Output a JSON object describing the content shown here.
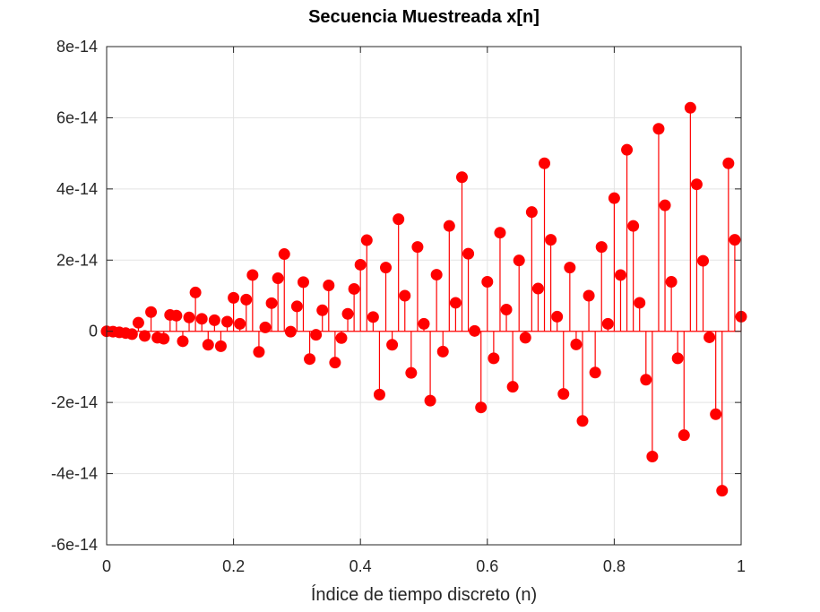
{
  "chart_data": {
    "type": "stem",
    "title": "Secuencia Muestreada x[n]",
    "xlabel": "Índice de tiempo discreto (n)",
    "ylabel": "",
    "xlim": [
      0,
      1
    ],
    "ylim": [
      -6e-14,
      8e-14
    ],
    "xticks": [
      0,
      0.2,
      0.4,
      0.6,
      0.8,
      1
    ],
    "xtick_labels": [
      "0",
      "0.2",
      "0.4",
      "0.6",
      "0.8",
      "1"
    ],
    "yticks": [
      -6e-14,
      -4e-14,
      -2e-14,
      0,
      2e-14,
      4e-14,
      6e-14,
      8e-14
    ],
    "ytick_labels": [
      "-6e-14",
      "-4e-14",
      "-2e-14",
      "0",
      "2e-14",
      "4e-14",
      "6e-14",
      "8e-14"
    ],
    "grid": true,
    "color": "#ff0000",
    "series": [
      {
        "x": [
          0,
          0.01,
          0.02,
          0.03,
          0.04,
          0.05,
          0.06,
          0.07,
          0.08,
          0.09,
          0.1,
          0.11,
          0.12,
          0.13,
          0.14,
          0.15,
          0.16,
          0.17,
          0.18,
          0.19,
          0.2,
          0.21,
          0.22,
          0.23,
          0.24,
          0.25,
          0.26,
          0.27,
          0.28,
          0.29,
          0.3,
          0.31,
          0.32,
          0.33,
          0.34,
          0.35,
          0.36,
          0.37,
          0.38,
          0.39,
          0.4,
          0.41,
          0.42,
          0.43,
          0.44,
          0.45,
          0.46,
          0.47,
          0.48,
          0.49,
          0.5,
          0.51,
          0.52,
          0.53,
          0.54,
          0.55,
          0.56,
          0.57,
          0.58,
          0.59,
          0.6,
          0.61,
          0.62,
          0.63,
          0.64,
          0.65,
          0.66,
          0.67,
          0.68,
          0.69,
          0.7,
          0.71,
          0.72,
          0.73,
          0.74,
          0.75,
          0.76,
          0.77,
          0.78,
          0.79,
          0.8,
          0.81,
          0.82,
          0.83,
          0.84,
          0.85,
          0.86,
          0.87,
          0.88,
          0.89,
          0.9,
          0.91,
          0.92,
          0.93,
          0.94,
          0.95,
          0.96,
          0.97,
          0.98,
          0.99,
          1.0
        ],
        "y": [
          0,
          -1e-16,
          -3e-16,
          -5e-16,
          -8e-16,
          2.4e-15,
          -1.3e-15,
          5.4e-15,
          -1.8e-15,
          -2.1e-15,
          4.6e-15,
          4.4e-15,
          -2.8e-15,
          3.9e-15,
          1.09e-14,
          3.5e-15,
          -3.8e-15,
          3.1e-15,
          -4.2e-15,
          2.7e-15,
          9.4e-15,
          2.1e-15,
          8.9e-15,
          1.58e-14,
          -5.8e-15,
          1.1e-15,
          7.9e-15,
          1.49e-14,
          2.17e-14,
          -1e-16,
          7e-15,
          1.38e-14,
          -7.8e-15,
          -1e-15,
          5.9e-15,
          1.29e-14,
          -8.8e-15,
          -1.9e-15,
          4.9e-15,
          1.19e-14,
          1.87e-14,
          2.56e-14,
          4e-15,
          -1.78e-14,
          1.79e-14,
          -3.8e-15,
          3.15e-14,
          1e-14,
          -1.17e-14,
          2.37e-14,
          2.1e-15,
          -1.95e-14,
          1.59e-14,
          -5.7e-15,
          2.96e-14,
          8e-15,
          4.33e-14,
          2.18e-14,
          1e-16,
          -2.14e-14,
          1.39e-14,
          -7.6e-15,
          2.77e-14,
          6.1e-15,
          -1.56e-14,
          1.99e-14,
          -1.8e-15,
          3.35e-14,
          1.2e-14,
          4.72e-14,
          2.57e-14,
          4.1e-15,
          -1.76e-14,
          1.79e-14,
          -3.7e-15,
          -2.52e-14,
          1e-14,
          -1.16e-14,
          2.37e-14,
          2.1e-15,
          3.74e-14,
          1.58e-14,
          5.1e-14,
          2.96e-14,
          8e-15,
          -1.36e-14,
          -3.52e-14,
          5.69e-14,
          3.54e-14,
          1.39e-14,
          -7.6e-15,
          -2.92e-14,
          6.28e-14,
          4.13e-14,
          1.98e-14,
          -1.7e-15,
          -2.33e-14,
          -4.48e-14,
          4.72e-14,
          2.57e-14,
          4.1e-15
        ]
      }
    ]
  }
}
